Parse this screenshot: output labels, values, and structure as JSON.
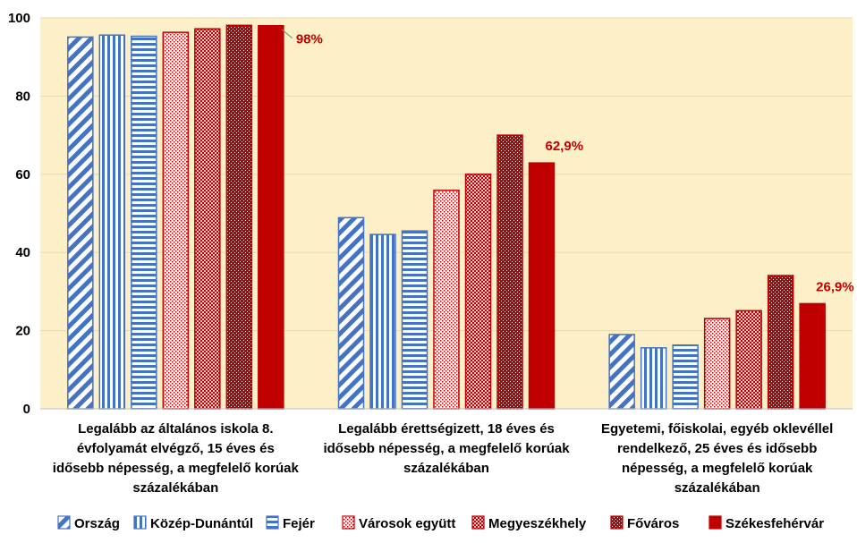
{
  "chart_data": {
    "type": "bar",
    "title": "",
    "xlabel": "",
    "ylabel": "",
    "ylim": [
      0,
      100
    ],
    "yticks": [
      "0",
      "20",
      "40",
      "60",
      "80",
      "100"
    ],
    "grid": true,
    "legend_position": "bottom",
    "categories": [
      [
        "Legalább az általános iskola 8.",
        "évfolyamát elvégző, 15 éves és",
        "idősebb népesség, a megfelelő korúak",
        "százalékában"
      ],
      [
        "Legalább érettségizett, 18 éves és",
        "idősebb népesség, a megfelelő korúak",
        "százalékában"
      ],
      [
        "Egyetemi, főiskolai, egyéb oklevéllel",
        "rendelkező, 25 éves és idősebb",
        "népesség, a megfelelő korúak",
        "százalékában"
      ]
    ],
    "series": [
      {
        "name": "Ország",
        "values": [
          95.1,
          48.9,
          19.0
        ],
        "color": "#4472c4",
        "pattern": "diag"
      },
      {
        "name": "Közép-Dunántúl",
        "values": [
          95.6,
          44.6,
          15.6
        ],
        "color": "#4472c4",
        "pattern": "vert"
      },
      {
        "name": "Fejér",
        "values": [
          95.3,
          45.5,
          16.3
        ],
        "color": "#4472c4",
        "pattern": "horiz"
      },
      {
        "name": "Városok együtt",
        "values": [
          96.3,
          55.9,
          23.1
        ],
        "color": "#c00000",
        "pattern": "dots-light"
      },
      {
        "name": "Megyeszékhely",
        "values": [
          97.2,
          60.0,
          25.1
        ],
        "color": "#c00000",
        "pattern": "dots-medium"
      },
      {
        "name": "Főváros",
        "values": [
          98.1,
          70.0,
          34.1
        ],
        "color": "#c00000",
        "pattern": "dots-dense"
      },
      {
        "name": "Székesfehérvár",
        "values": [
          98.0,
          62.9,
          26.9
        ],
        "color": "#c00000",
        "pattern": "solid"
      }
    ],
    "data_labels": [
      {
        "series": 6,
        "category": 0,
        "text": "98%",
        "color": "#c00000"
      },
      {
        "series": 6,
        "category": 1,
        "text": "62,9%",
        "color": "#c00000"
      },
      {
        "series": 6,
        "category": 2,
        "text": "26,9%",
        "color": "#c00000"
      }
    ],
    "plot_background": "#fdf0c8",
    "grid_color": "#e6d9b0"
  }
}
